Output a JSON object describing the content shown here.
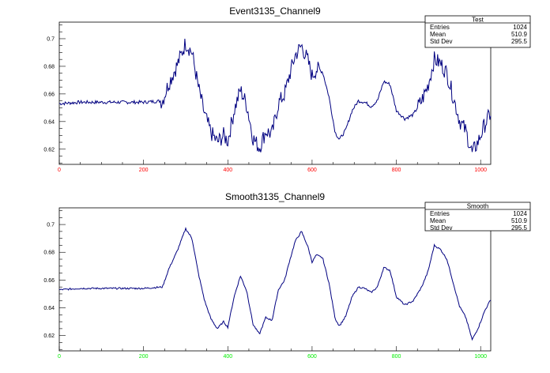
{
  "chart_data": [
    {
      "type": "line",
      "title": "Event3135_Channel9",
      "xlim": [
        0,
        1024
      ],
      "ylim": [
        0.609,
        0.712
      ],
      "x_ticks": [
        0,
        200,
        400,
        600,
        800,
        1000
      ],
      "y_ticks": [
        0.62,
        0.64,
        0.66,
        0.68,
        0.7
      ],
      "x_tick_color": "#ff0000",
      "line_color": "#000080",
      "noisy": true,
      "grid": false,
      "legend": "top-right",
      "stats": {
        "name": "Test",
        "rows": [
          {
            "label": "Entries",
            "value": "1024"
          },
          {
            "label": "Mean",
            "value": "510.9"
          },
          {
            "label": "Std Dev",
            "value": "295.5"
          }
        ]
      },
      "series": [
        {
          "x": [
            0,
            50,
            100,
            150,
            200,
            245,
            260,
            280,
            300,
            315,
            330,
            345,
            360,
            375,
            390,
            400,
            415,
            430,
            445,
            460,
            475,
            490,
            505,
            520,
            535,
            545,
            560,
            575,
            590,
            600,
            610,
            625,
            640,
            655,
            665,
            680,
            695,
            710,
            725,
            740,
            755,
            770,
            785,
            800,
            820,
            840,
            860,
            875,
            890,
            905,
            920,
            935,
            950,
            965,
            980,
            995,
            1010,
            1024
          ],
          "y": [
            0.653,
            0.654,
            0.654,
            0.654,
            0.654,
            0.655,
            0.668,
            0.681,
            0.697,
            0.69,
            0.665,
            0.645,
            0.632,
            0.625,
            0.63,
            0.626,
            0.648,
            0.663,
            0.652,
            0.628,
            0.621,
            0.633,
            0.631,
            0.653,
            0.66,
            0.672,
            0.688,
            0.695,
            0.684,
            0.673,
            0.678,
            0.676,
            0.658,
            0.632,
            0.627,
            0.634,
            0.648,
            0.655,
            0.654,
            0.651,
            0.655,
            0.669,
            0.667,
            0.648,
            0.642,
            0.645,
            0.655,
            0.666,
            0.685,
            0.682,
            0.675,
            0.658,
            0.641,
            0.633,
            0.617,
            0.626,
            0.638,
            0.646
          ]
        }
      ]
    },
    {
      "type": "line",
      "title": "Smooth3135_Channel9",
      "xlim": [
        0,
        1024
      ],
      "ylim": [
        0.609,
        0.712
      ],
      "x_ticks": [
        0,
        200,
        400,
        600,
        800,
        1000
      ],
      "y_ticks": [
        0.62,
        0.64,
        0.66,
        0.68,
        0.7
      ],
      "x_tick_color": "#00ee00",
      "line_color": "#000080",
      "noisy": false,
      "grid": false,
      "legend": "top-right",
      "stats": {
        "name": "Smooth",
        "rows": [
          {
            "label": "Entries",
            "value": "1024"
          },
          {
            "label": "Mean",
            "value": "510.9"
          },
          {
            "label": "Std Dev",
            "value": "295.5"
          }
        ]
      },
      "series": [
        {
          "x": [
            0,
            50,
            100,
            150,
            200,
            245,
            260,
            280,
            300,
            315,
            330,
            345,
            360,
            375,
            390,
            400,
            415,
            430,
            445,
            460,
            475,
            490,
            505,
            520,
            535,
            545,
            560,
            575,
            590,
            600,
            610,
            625,
            640,
            655,
            665,
            680,
            695,
            710,
            725,
            740,
            755,
            770,
            785,
            800,
            820,
            840,
            860,
            875,
            890,
            905,
            920,
            935,
            950,
            965,
            980,
            995,
            1010,
            1024
          ],
          "y": [
            0.653,
            0.654,
            0.654,
            0.654,
            0.654,
            0.655,
            0.668,
            0.681,
            0.697,
            0.69,
            0.665,
            0.645,
            0.632,
            0.625,
            0.63,
            0.626,
            0.648,
            0.663,
            0.652,
            0.628,
            0.621,
            0.633,
            0.631,
            0.653,
            0.66,
            0.672,
            0.688,
            0.695,
            0.684,
            0.673,
            0.678,
            0.676,
            0.658,
            0.632,
            0.627,
            0.634,
            0.648,
            0.655,
            0.654,
            0.651,
            0.655,
            0.669,
            0.667,
            0.648,
            0.642,
            0.645,
            0.655,
            0.666,
            0.685,
            0.682,
            0.675,
            0.658,
            0.641,
            0.633,
            0.617,
            0.626,
            0.638,
            0.646
          ]
        }
      ]
    }
  ]
}
